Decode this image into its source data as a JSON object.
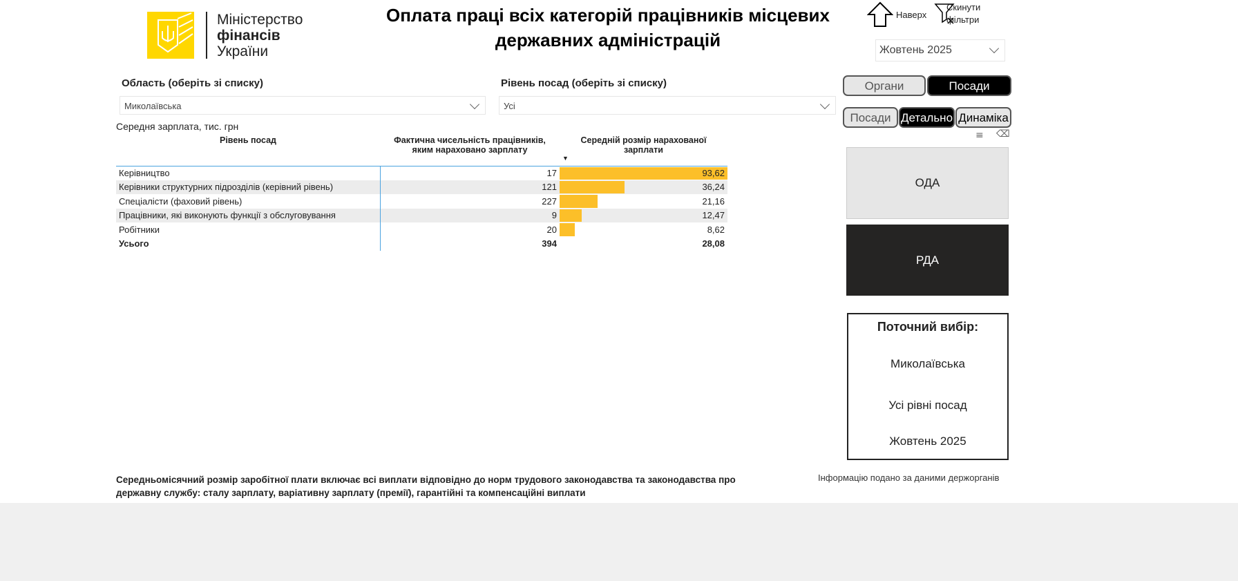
{
  "logo": {
    "line1": "Міністерство",
    "line2": "фінансів",
    "line3": "України"
  },
  "title": "Оплата праці всіх категорій працівників місцевих державних адміністрацій",
  "nav": {
    "up": "Наверх",
    "reset": "Скинути фільтри",
    "period": "Жовтень 2025"
  },
  "filters": {
    "region_label": "Область",
    "region_hint": "(оберіть зі списку)",
    "region_value": "Миколаївська",
    "level_label": "Рівень посад",
    "level_hint": "(оберіть зі списку)",
    "level_value": "Усі"
  },
  "toggles": {
    "organs": "Органи",
    "posady": "Посади",
    "posady2": "Посади",
    "detail": "Детально",
    "dynamics": "Динаміка"
  },
  "table": {
    "caption": "Середня зарплата, тис. грн",
    "headers": [
      "Рівень посад",
      "Фактична чисельність працівників, яким нараховано зарплату",
      "Середній розмір нарахованої зарплати"
    ],
    "rows": [
      {
        "level": "Керівництво",
        "count": "17",
        "avg": "93,62"
      },
      {
        "level": "Керівники структурних підрозділів (керівний рівень)",
        "count": "121",
        "avg": "36,24"
      },
      {
        "level": "Спеціалісти (фаховий рівень)",
        "count": "227",
        "avg": "21,16"
      },
      {
        "level": "Працівники, які виконують функції з обслуговування",
        "count": "9",
        "avg": "12,47"
      },
      {
        "level": "Робітники",
        "count": "20",
        "avg": "8,62"
      }
    ],
    "total": {
      "level": "Усього",
      "count": "394",
      "avg": "28,08"
    },
    "bar_color": "#fcbf29"
  },
  "orgs": {
    "oda": "ОДА",
    "rda": "РДА"
  },
  "current": {
    "title": "Поточний вибір:",
    "region": "Миколаївська",
    "level": "Усі рівні посад",
    "period": "Жовтень 2025"
  },
  "footer": {
    "note": "Середньомісячний розмір заробітної плати включає всі виплати відповідно до норм трудового законодавства та законодавства про державну службу: сталу зарплату, варіативну зарплату (премії), гарантійні та компенсаційні виплати",
    "source": "Інформацію подано за даними держорганів"
  }
}
